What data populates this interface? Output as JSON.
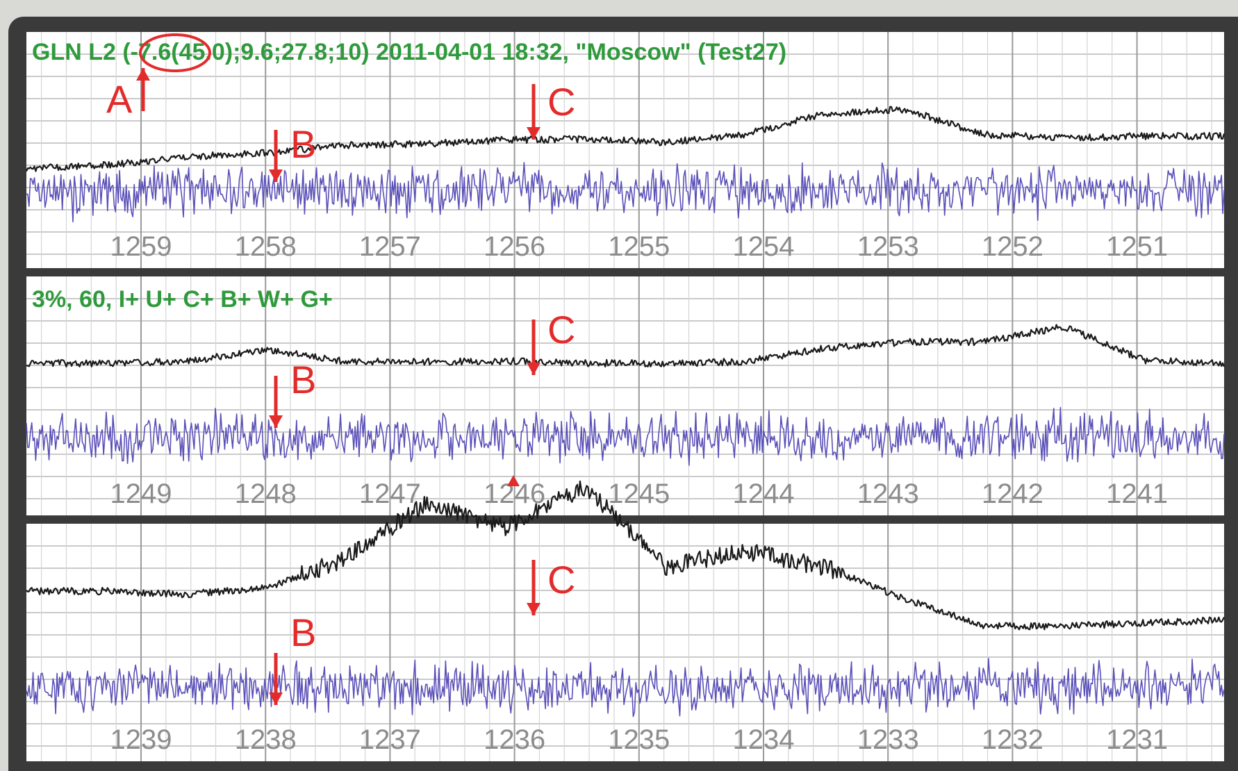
{
  "header_line": "GLN L2 (-7.6(45.0);9.6;27.8;10) 2011-04-01 18:32, \"Moscow\" (Test27)",
  "settings_line": "3%, 60, I+ U+ C+ B+ W+ G+",
  "colors": {
    "header_text": "#2f9a3c",
    "annotation": "#e32b2b",
    "trace_black": "#1a1a1a",
    "trace_blue": "#5a50b8",
    "grid": "#b9b9b9",
    "paper": "#ffffff",
    "frame": "#3a3a3a"
  },
  "chart_data": [
    {
      "type": "line",
      "ticks": [
        "1259",
        "1258",
        "1257",
        "1256",
        "1255",
        "1254",
        "1253",
        "1252",
        "1251"
      ],
      "annotations": [
        "A",
        "B",
        "C"
      ],
      "series": [
        {
          "color": "black",
          "level": [
            0.18,
            0.22,
            0.33,
            0.38,
            0.48,
            0.5,
            0.55,
            0.56,
            0.52,
            0.62,
            0.9,
            0.95,
            0.62,
            0.58,
            0.6,
            0.6
          ]
        },
        {
          "color": "blue",
          "level": [
            0.0,
            0.0,
            0.0,
            0.0,
            0.0,
            0.0,
            0.0,
            0.0,
            0.0,
            0.0,
            0.0,
            0.0,
            0.0,
            0.0,
            0.0,
            0.0
          ]
        }
      ]
    },
    {
      "type": "line",
      "ticks": [
        "1249",
        "1248",
        "1247",
        "1246",
        "1245",
        "1244",
        "1243",
        "1242",
        "1241"
      ],
      "annotations": [
        "B",
        "C"
      ],
      "series": [
        {
          "color": "black",
          "level": [
            0.3,
            0.3,
            0.32,
            0.48,
            0.32,
            0.32,
            0.33,
            0.3,
            0.3,
            0.32,
            0.5,
            0.58,
            0.58,
            0.78,
            0.34,
            0.3
          ]
        },
        {
          "color": "blue",
          "level": [
            0.0,
            0.0,
            0.0,
            0.0,
            0.0,
            0.0,
            0.0,
            0.0,
            0.0,
            0.0,
            0.0,
            0.0,
            0.0,
            0.0,
            0.0,
            0.0
          ]
        }
      ]
    },
    {
      "type": "line",
      "ticks": [
        "1239",
        "1238",
        "1237",
        "1236",
        "1235",
        "1234",
        "1233",
        "1232",
        "1231"
      ],
      "annotations": [
        "B",
        "C"
      ],
      "series": [
        {
          "color": "black",
          "level": [
            0.3,
            0.3,
            0.28,
            0.32,
            0.5,
            0.85,
            0.7,
            0.95,
            0.45,
            0.55,
            0.45,
            0.25,
            0.08,
            0.08,
            0.1,
            0.12
          ]
        },
        {
          "color": "blue",
          "level": [
            0.0,
            0.0,
            0.0,
            0.0,
            0.0,
            0.0,
            0.0,
            0.0,
            0.0,
            0.0,
            0.0,
            0.0,
            0.0,
            0.0,
            0.0,
            0.0
          ]
        }
      ]
    }
  ]
}
